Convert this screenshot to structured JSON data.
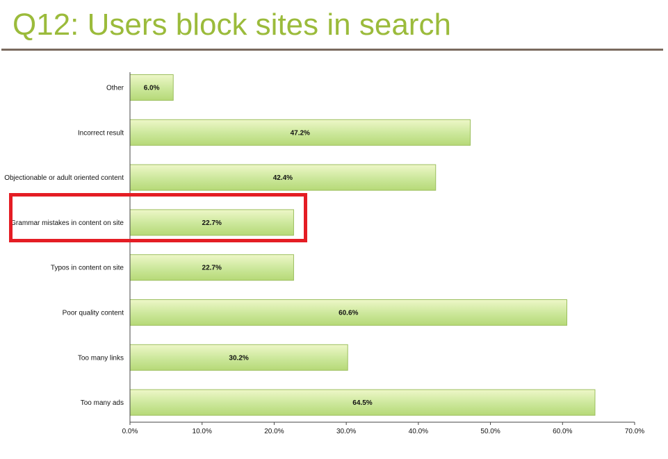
{
  "slide": {
    "title": "Q12: Users block sites in search"
  },
  "colors": {
    "title": "#9bbb3b",
    "bar_fill_light": "#eef7c8",
    "bar_fill_dark": "#b6d977",
    "bar_stroke": "#9cbf5e",
    "highlight": "#e41d24",
    "rule": "#7a6a5e"
  },
  "highlighted_category": "Grammar mistakes in content on site",
  "chart_data": {
    "type": "bar",
    "orientation": "horizontal",
    "categories": [
      "Other",
      "Incorrect result",
      "Objectionable or adult oriented content",
      "Grammar mistakes in content on site",
      "Typos in content on site",
      "Poor quality content",
      "Too many links",
      "Too many ads"
    ],
    "values": [
      6.0,
      47.2,
      42.4,
      22.7,
      22.7,
      60.6,
      30.2,
      64.5
    ],
    "value_labels": [
      "6.0%",
      "47.2%",
      "42.4%",
      "22.7%",
      "22.7%",
      "60.6%",
      "30.2%",
      "64.5%"
    ],
    "xlim": [
      0,
      70
    ],
    "xticks": [
      0,
      10,
      20,
      30,
      40,
      50,
      60,
      70
    ],
    "xtick_labels": [
      "0.0%",
      "10.0%",
      "20.0%",
      "30.0%",
      "40.0%",
      "50.0%",
      "60.0%",
      "70.0%"
    ],
    "xlabel": "",
    "ylabel": "",
    "grid": false,
    "legend": "none"
  }
}
